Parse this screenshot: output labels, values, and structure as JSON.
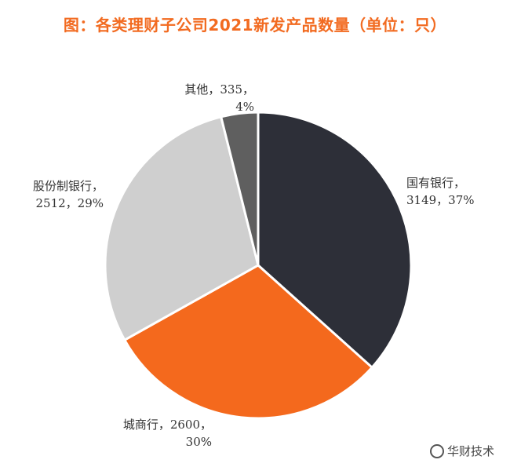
{
  "chart_data": {
    "type": "pie",
    "title": "图：各类理财子公司2021新发产品数量（单位：只）",
    "slices": [
      {
        "name": "国有银行",
        "value": 3149,
        "percent": "37%",
        "color": "#2d2f38",
        "label_line1": "国有银行，",
        "label_line2": "3149，37%"
      },
      {
        "name": "城商行",
        "value": 2600,
        "percent": "30%",
        "color": "#f4691d",
        "label_line1": "城商行，2600，",
        "label_line2": "30%"
      },
      {
        "name": "股份制银行",
        "value": 2512,
        "percent": "29%",
        "color": "#cfcfcf",
        "label_line1": "股份制银行，",
        "label_line2": "2512，29%"
      },
      {
        "name": "其他",
        "value": 335,
        "percent": "4%",
        "color": "#5f5f5f",
        "label_line1": "其他，335，",
        "label_line2": "4%"
      }
    ]
  },
  "watermark": {
    "text": "华财技术"
  }
}
